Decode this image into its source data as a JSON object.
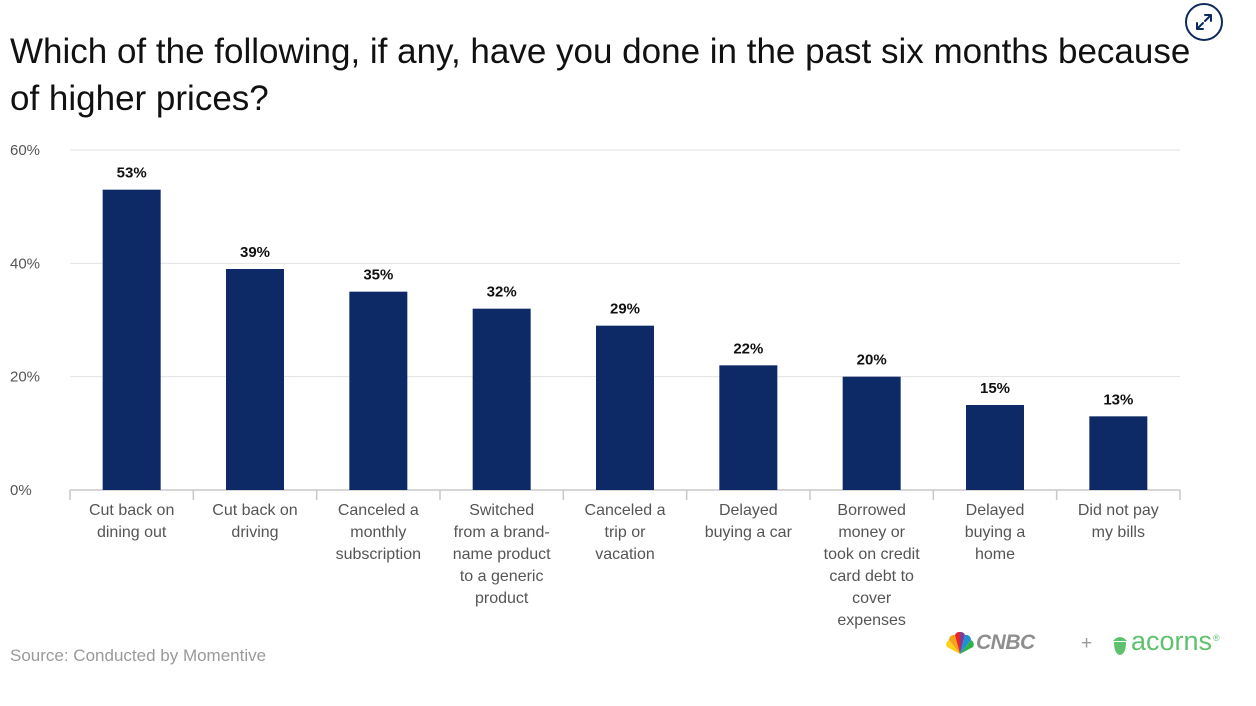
{
  "title": "Which of the following, if any, have you done in the past six months because of higher prices?",
  "source": "Source: Conducted by Momentive",
  "logos": {
    "cnbc": "CNBC",
    "plus": "+",
    "acorns": "acorns",
    "acorns_mark": "®"
  },
  "icons": {
    "expand": "expand-arrows-icon",
    "peacock": "peacock-icon",
    "acorn": "acorn-icon"
  },
  "colors": {
    "bar": "#0e2a66",
    "grid": "#e3e3e3",
    "axis": "#c8c8c8",
    "acorns_green": "#5ec16b"
  },
  "chart_data": {
    "type": "bar",
    "title": "Which of the following, if any, have you done in the past six months because of higher prices?",
    "categories": [
      "Cut back on dining out",
      "Cut back on driving",
      "Canceled a monthly subscription",
      "Switched from a brand-name product to a generic product",
      "Canceled a trip or vacation",
      "Delayed buying a car",
      "Borrowed money or took on credit card debt to cover expenses",
      "Delayed buying a home",
      "Did not pay my bills"
    ],
    "category_lines": [
      [
        "Cut back on",
        "dining out"
      ],
      [
        "Cut back on",
        "driving"
      ],
      [
        "Canceled a",
        "monthly",
        "subscription"
      ],
      [
        "Switched",
        "from a brand-",
        "name product",
        "to a generic",
        "product"
      ],
      [
        "Canceled a",
        "trip or",
        "vacation"
      ],
      [
        "Delayed",
        "buying a car"
      ],
      [
        "Borrowed",
        "money or",
        "took on credit",
        "card debt to",
        "cover",
        "expenses"
      ],
      [
        "Delayed",
        "buying a",
        "home"
      ],
      [
        "Did not pay",
        "my bills"
      ]
    ],
    "values": [
      53,
      39,
      35,
      32,
      29,
      22,
      20,
      15,
      13
    ],
    "value_labels": [
      "53%",
      "39%",
      "35%",
      "32%",
      "29%",
      "22%",
      "20%",
      "15%",
      "13%"
    ],
    "yticks": [
      0,
      20,
      40,
      60
    ],
    "ytick_labels": [
      "0%",
      "20%",
      "40%",
      "60%"
    ],
    "ylim": [
      0,
      60
    ],
    "grid": true,
    "legend": "none"
  }
}
